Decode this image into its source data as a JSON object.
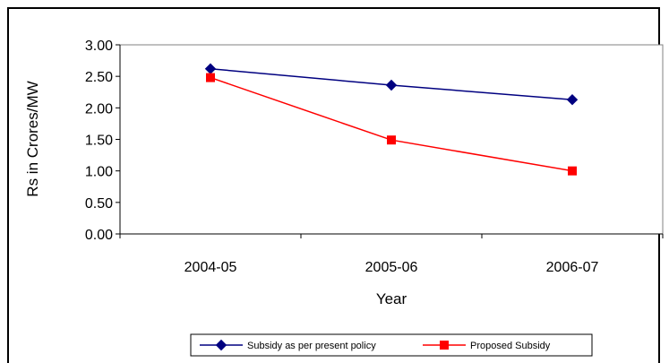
{
  "chart_data": {
    "type": "line",
    "title": "",
    "xlabel": "Year",
    "ylabel": "Rs in Crores/MW",
    "categories": [
      "2004-05",
      "2005-06",
      "2006-07"
    ],
    "ylim": [
      0,
      3
    ],
    "yticks": [
      "0.00",
      "0.50",
      "1.00",
      "1.50",
      "2.00",
      "2.50",
      "3.00"
    ],
    "grid": false,
    "legend_position": "bottom",
    "series": [
      {
        "name": "Subsidy as per present policy",
        "values": [
          2.62,
          2.36,
          2.13
        ],
        "color": "#000080",
        "marker": "diamond"
      },
      {
        "name": "Proposed Subsidy",
        "values": [
          2.48,
          1.49,
          1.0
        ],
        "color": "#ff0000",
        "marker": "square"
      }
    ]
  }
}
